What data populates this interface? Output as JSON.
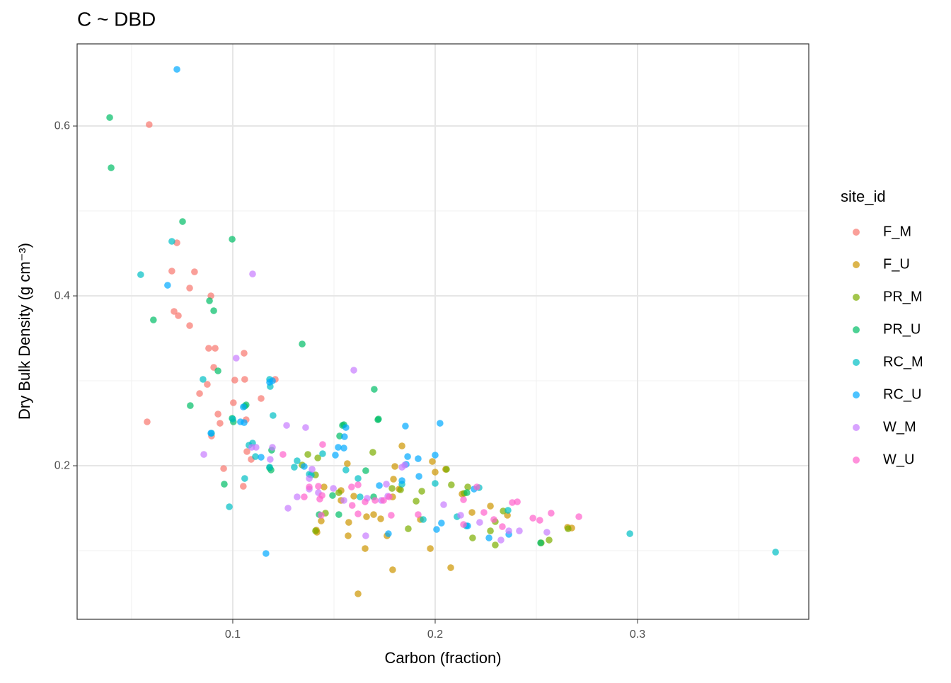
{
  "chart_data": {
    "type": "scatter",
    "title": "C ~ DBD",
    "xlabel": "Carbon (fraction)",
    "ylabel": "Dry Bulk Density (g cm⁻³)",
    "legend_title": "site_id",
    "legend_position": "right",
    "grid": true,
    "xlim": [
      0.0231,
      0.3846
    ],
    "ylim": [
      0.0192,
      0.6967
    ],
    "xticks": [
      0.1,
      0.2,
      0.3
    ],
    "yticks": [
      0.2,
      0.4,
      0.6
    ],
    "x_minor_breaks": [
      0.05,
      0.15,
      0.25,
      0.35
    ],
    "y_minor_breaks": [
      0.1,
      0.3,
      0.5
    ],
    "series": [
      {
        "name": "F_M",
        "color": "#F8766D",
        "x": [
          0.0587,
          0.0724,
          0.0699,
          0.0811,
          0.0787,
          0.0892,
          0.071,
          0.0731,
          0.0787,
          0.0881,
          0.0913,
          0.1056,
          0.0906,
          0.101,
          0.1059,
          0.121,
          0.0927,
          0.1003,
          0.114,
          0.0836,
          0.0874,
          0.0577,
          0.1066,
          0.0937,
          0.0955,
          0.107,
          0.1091,
          0.1052,
          0.0895
        ],
        "y": [
          0.6017,
          0.4625,
          0.4292,
          0.4283,
          0.4092,
          0.4,
          0.3817,
          0.3767,
          0.365,
          0.3383,
          0.3383,
          0.3325,
          0.3158,
          0.3008,
          0.3017,
          0.3017,
          0.2608,
          0.2742,
          0.2792,
          0.285,
          0.2958,
          0.2517,
          0.2542,
          0.25,
          0.1967,
          0.2167,
          0.2075,
          0.1758,
          0.235
        ]
      },
      {
        "name": "F_U",
        "color": "#CD9600",
        "x": [
          0.1619,
          0.179,
          0.2077,
          0.1976,
          0.1654,
          0.157,
          0.1416,
          0.1762,
          0.1437,
          0.1573,
          0.1731,
          0.1696,
          0.1535,
          0.1535,
          0.1598,
          0.1661,
          0.1801,
          0.1986,
          0.2,
          0.2052,
          0.1794,
          0.1822,
          0.179,
          0.2133,
          0.2182,
          0.2273,
          0.2357,
          0.2675,
          0.2654,
          0.1927,
          0.1413,
          0.1566,
          0.1836,
          0.1451
        ],
        "y": [
          0.0492,
          0.0775,
          0.08,
          0.1025,
          0.1025,
          0.1175,
          0.1217,
          0.1175,
          0.135,
          0.1333,
          0.1375,
          0.1425,
          0.1708,
          0.1592,
          0.1642,
          0.14,
          0.1992,
          0.205,
          0.1925,
          0.1958,
          0.1842,
          0.1725,
          0.1633,
          0.1667,
          0.145,
          0.1525,
          0.1417,
          0.1267,
          0.1275,
          0.1367,
          0.1242,
          0.2025,
          0.2233,
          0.175
        ]
      },
      {
        "name": "PR_M",
        "color": "#7CAE00",
        "x": [
          0.1409,
          0.1458,
          0.1371,
          0.142,
          0.1409,
          0.1692,
          0.1787,
          0.1829,
          0.1934,
          0.1867,
          0.1906,
          0.2056,
          0.208,
          0.2143,
          0.2161,
          0.2297,
          0.2273,
          0.2297,
          0.2336,
          0.2185,
          0.2563,
          0.2657,
          0.2524,
          0.1343,
          0.1524
        ],
        "y": [
          0.1233,
          0.1442,
          0.2133,
          0.2092,
          0.1892,
          0.2158,
          0.1733,
          0.1717,
          0.17,
          0.1258,
          0.1583,
          0.1958,
          0.1775,
          0.1675,
          0.175,
          0.1342,
          0.1233,
          0.1067,
          0.1467,
          0.115,
          0.1125,
          0.1258,
          0.1092,
          0.2008,
          0.1683
        ]
      },
      {
        "name": "PR_U",
        "color": "#00BE67",
        "x": [
          0.0392,
          0.0399,
          0.0752,
          0.0997,
          0.0608,
          0.0885,
          0.0906,
          0.0927,
          0.079,
          0.1066,
          0.1059,
          0.0997,
          0.1003,
          0.0958,
          0.1343,
          0.1699,
          0.1717,
          0.1542,
          0.1528,
          0.1524,
          0.1427,
          0.1493,
          0.1657,
          0.1696,
          0.172,
          0.1189,
          0.1182,
          0.1192,
          0.1549,
          0.2157,
          0.2521
        ],
        "y": [
          0.61,
          0.5508,
          0.4875,
          0.4667,
          0.3717,
          0.3942,
          0.3825,
          0.3117,
          0.2708,
          0.2717,
          0.27,
          0.2558,
          0.2517,
          0.1783,
          0.3433,
          0.29,
          0.2542,
          0.2475,
          0.235,
          0.1425,
          0.1425,
          0.165,
          0.1942,
          0.1633,
          0.255,
          0.195,
          0.1975,
          0.2183,
          0.2483,
          0.1683,
          0.1092
        ]
      },
      {
        "name": "RC_M",
        "color": "#00BFC4",
        "x": [
          0.0545,
          0.0699,
          0.0853,
          0.0895,
          0.1,
          0.0983,
          0.1059,
          0.108,
          0.1098,
          0.1182,
          0.1185,
          0.1199,
          0.1182,
          0.1304,
          0.1318,
          0.1378,
          0.1388,
          0.1444,
          0.1559,
          0.1619,
          0.1629,
          0.1836,
          0.1941,
          0.2,
          0.2108,
          0.2154,
          0.2217,
          0.236,
          0.2962,
          0.3682,
          0.1112
        ],
        "y": [
          0.425,
          0.4642,
          0.3017,
          0.2383,
          0.255,
          0.1517,
          0.185,
          0.2242,
          0.2267,
          0.3017,
          0.2933,
          0.2592,
          0.1983,
          0.1983,
          0.2058,
          0.19,
          0.1892,
          0.2142,
          0.195,
          0.185,
          0.1633,
          0.1783,
          0.1367,
          0.1792,
          0.14,
          0.1292,
          0.1742,
          0.1475,
          0.12,
          0.0983,
          0.2108
        ]
      },
      {
        "name": "RC_U",
        "color": "#00A9FF",
        "x": [
          0.0724,
          0.0678,
          0.0892,
          0.1052,
          0.1056,
          0.1038,
          0.1196,
          0.1164,
          0.114,
          0.1353,
          0.1521,
          0.1559,
          0.1552,
          0.1724,
          0.1769,
          0.1836,
          0.1853,
          0.1864,
          0.1857,
          0.192,
          0.1916,
          0.2,
          0.2024,
          0.2007,
          0.2031,
          0.2161,
          0.2192,
          0.2266,
          0.2364,
          0.1182,
          0.1507,
          0.1549
        ],
        "y": [
          0.6667,
          0.4125,
          0.2383,
          0.2692,
          0.2508,
          0.2517,
          0.3,
          0.0967,
          0.21,
          0.1992,
          0.2217,
          0.245,
          0.2342,
          0.1767,
          0.12,
          0.1825,
          0.2467,
          0.2108,
          0.2017,
          0.1875,
          0.2083,
          0.2125,
          0.25,
          0.125,
          0.1325,
          0.1292,
          0.1725,
          0.115,
          0.1192,
          0.2983,
          0.2125,
          0.2208
        ]
      },
      {
        "name": "W_M",
        "color": "#C77CFF",
        "x": [
          0.1098,
          0.1017,
          0.1598,
          0.0857,
          0.1185,
          0.1196,
          0.1094,
          0.1266,
          0.136,
          0.1273,
          0.1318,
          0.1378,
          0.1392,
          0.1378,
          0.1497,
          0.1423,
          0.1549,
          0.1657,
          0.1664,
          0.1766,
          0.1759,
          0.1734,
          0.1836,
          0.2042,
          0.2126,
          0.222,
          0.2325,
          0.2364,
          0.2416,
          0.2552,
          0.185,
          0.1115
        ],
        "y": [
          0.4258,
          0.3267,
          0.3125,
          0.2133,
          0.2075,
          0.2217,
          0.2217,
          0.2475,
          0.245,
          0.15,
          0.1633,
          0.185,
          0.1958,
          0.1725,
          0.1733,
          0.1683,
          0.1592,
          0.1175,
          0.1617,
          0.1642,
          0.1783,
          0.1592,
          0.1983,
          0.1542,
          0.1417,
          0.1333,
          0.1125,
          0.1233,
          0.1233,
          0.1217,
          0.2008,
          0.2217
        ]
      },
      {
        "name": "W_U",
        "color": "#FF61CC",
        "x": [
          0.1248,
          0.1444,
          0.1353,
          0.1378,
          0.1423,
          0.143,
          0.1437,
          0.1587,
          0.1619,
          0.159,
          0.1619,
          0.1654,
          0.1703,
          0.1745,
          0.1783,
          0.1773,
          0.1916,
          0.214,
          0.2206,
          0.2241,
          0.229,
          0.2332,
          0.2381,
          0.2406,
          0.2483,
          0.2517,
          0.2573,
          0.271,
          0.214,
          0.1441
        ],
        "y": [
          0.2133,
          0.225,
          0.1633,
          0.175,
          0.1758,
          0.1608,
          0.1417,
          0.175,
          0.1775,
          0.1533,
          0.1433,
          0.1575,
          0.1592,
          0.1592,
          0.1417,
          0.1633,
          0.1425,
          0.16,
          0.175,
          0.145,
          0.1367,
          0.1283,
          0.1567,
          0.1575,
          0.1383,
          0.1358,
          0.1442,
          0.14,
          0.1308,
          0.165
        ]
      }
    ]
  }
}
